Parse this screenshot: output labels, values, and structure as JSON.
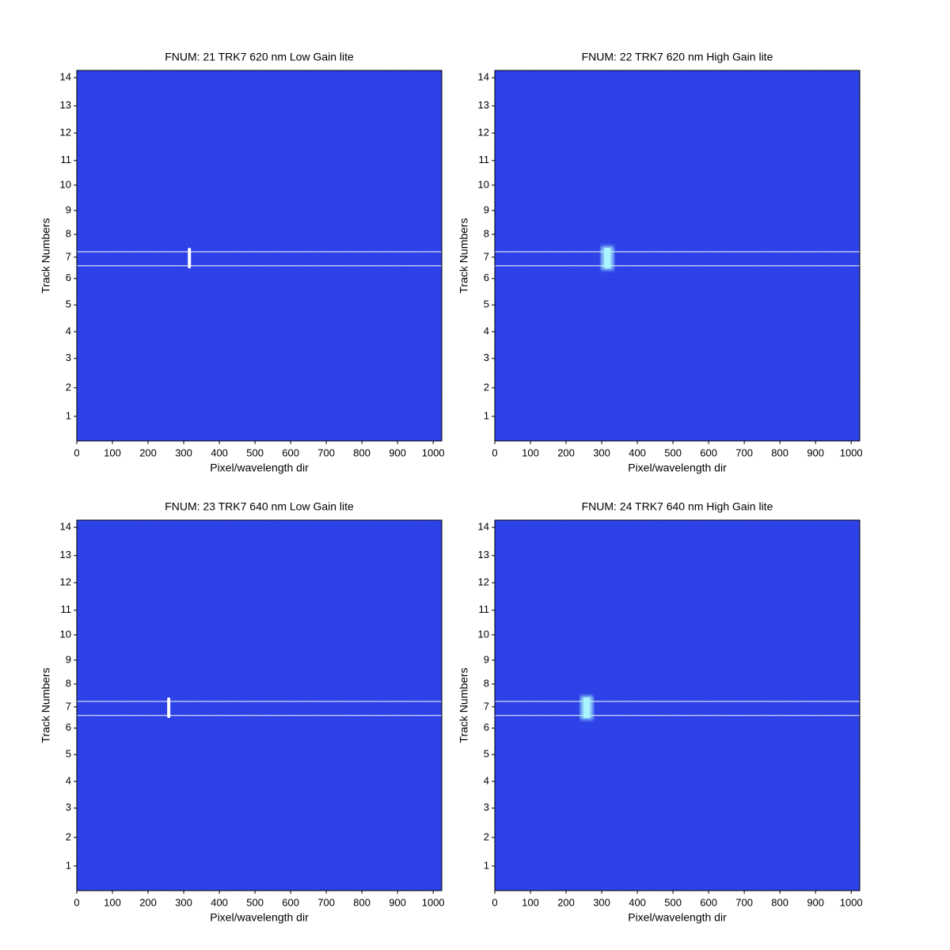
{
  "chart_data": [
    {
      "type": "heatmap",
      "title": "FNUM: 21 TRK7 620 nm Low Gain lite",
      "xlabel": "Pixel/wavelength dir",
      "ylabel": "Track Numbers",
      "xlim": [
        0,
        1024
      ],
      "xticks": [
        0,
        100,
        200,
        300,
        400,
        500,
        600,
        700,
        800,
        900,
        1000
      ],
      "ylim": [
        0,
        1024
      ],
      "yticks": [
        {
          "value": 68,
          "label": "1"
        },
        {
          "value": 147,
          "label": "2"
        },
        {
          "value": 228,
          "label": "3"
        },
        {
          "value": 302,
          "label": "4"
        },
        {
          "value": 376,
          "label": "5"
        },
        {
          "value": 449,
          "label": "6"
        },
        {
          "value": 508,
          "label": "7"
        },
        {
          "value": 571,
          "label": "8"
        },
        {
          "value": 637,
          "label": "9"
        },
        {
          "value": 707,
          "label": "10"
        },
        {
          "value": 775,
          "label": "11"
        },
        {
          "value": 851,
          "label": "12"
        },
        {
          "value": 926,
          "label": "13"
        },
        {
          "value": 1004,
          "label": "14"
        }
      ],
      "color": "#1c30e2",
      "track_lines": [
        484,
        523
      ],
      "spot": {
        "x": 316,
        "y": [
          477,
          534
        ]
      },
      "spot_color": "#ffffff"
    },
    {
      "type": "heatmap",
      "title": "FNUM: 22 TRK7 620 nm High Gain lite",
      "xlabel": "Pixel/wavelength dir",
      "ylabel": "Track Numbers",
      "xlim": [
        0,
        1024
      ],
      "xticks": [
        0,
        100,
        200,
        300,
        400,
        500,
        600,
        700,
        800,
        900,
        1000
      ],
      "ylim": [
        0,
        1024
      ],
      "yticks": [
        {
          "value": 68,
          "label": "1"
        },
        {
          "value": 147,
          "label": "2"
        },
        {
          "value": 228,
          "label": "3"
        },
        {
          "value": 302,
          "label": "4"
        },
        {
          "value": 376,
          "label": "5"
        },
        {
          "value": 449,
          "label": "6"
        },
        {
          "value": 508,
          "label": "7"
        },
        {
          "value": 571,
          "label": "8"
        },
        {
          "value": 637,
          "label": "9"
        },
        {
          "value": 707,
          "label": "10"
        },
        {
          "value": 775,
          "label": "11"
        },
        {
          "value": 851,
          "label": "12"
        },
        {
          "value": 926,
          "label": "13"
        },
        {
          "value": 1004,
          "label": "14"
        }
      ],
      "color": "#1c30e2",
      "track_lines": [
        484,
        523
      ],
      "spot": {
        "x": 316,
        "y": [
          477,
          534
        ]
      },
      "spot_color": "#aaf5ff"
    },
    {
      "type": "heatmap",
      "title": "FNUM: 23 TRK7 640 nm Low Gain lite",
      "xlabel": "Pixel/wavelength dir",
      "ylabel": "Track Numbers",
      "xlim": [
        0,
        1024
      ],
      "xticks": [
        0,
        100,
        200,
        300,
        400,
        500,
        600,
        700,
        800,
        900,
        1000
      ],
      "ylim": [
        0,
        1024
      ],
      "yticks": [
        {
          "value": 68,
          "label": "1"
        },
        {
          "value": 147,
          "label": "2"
        },
        {
          "value": 228,
          "label": "3"
        },
        {
          "value": 302,
          "label": "4"
        },
        {
          "value": 376,
          "label": "5"
        },
        {
          "value": 449,
          "label": "6"
        },
        {
          "value": 508,
          "label": "7"
        },
        {
          "value": 571,
          "label": "8"
        },
        {
          "value": 637,
          "label": "9"
        },
        {
          "value": 707,
          "label": "10"
        },
        {
          "value": 775,
          "label": "11"
        },
        {
          "value": 851,
          "label": "12"
        },
        {
          "value": 926,
          "label": "13"
        },
        {
          "value": 1004,
          "label": "14"
        }
      ],
      "color": "#1c30e2",
      "track_lines": [
        484,
        523
      ],
      "spot": {
        "x": 258,
        "y": [
          477,
          534
        ]
      },
      "spot_color": "#ffffff"
    },
    {
      "type": "heatmap",
      "title": "FNUM: 24 TRK7 640 nm High Gain lite",
      "xlabel": "Pixel/wavelength dir",
      "ylabel": "Track Numbers",
      "xlim": [
        0,
        1024
      ],
      "xticks": [
        0,
        100,
        200,
        300,
        400,
        500,
        600,
        700,
        800,
        900,
        1000
      ],
      "ylim": [
        0,
        1024
      ],
      "yticks": [
        {
          "value": 68,
          "label": "1"
        },
        {
          "value": 147,
          "label": "2"
        },
        {
          "value": 228,
          "label": "3"
        },
        {
          "value": 302,
          "label": "4"
        },
        {
          "value": 376,
          "label": "5"
        },
        {
          "value": 449,
          "label": "6"
        },
        {
          "value": 508,
          "label": "7"
        },
        {
          "value": 571,
          "label": "8"
        },
        {
          "value": 637,
          "label": "9"
        },
        {
          "value": 707,
          "label": "10"
        },
        {
          "value": 775,
          "label": "11"
        },
        {
          "value": 851,
          "label": "12"
        },
        {
          "value": 926,
          "label": "13"
        },
        {
          "value": 1004,
          "label": "14"
        }
      ],
      "color": "#1c30e2",
      "track_lines": [
        484,
        523
      ],
      "spot": {
        "x": 258,
        "y": [
          477,
          534
        ]
      },
      "spot_color": "#aaf5ff"
    }
  ]
}
